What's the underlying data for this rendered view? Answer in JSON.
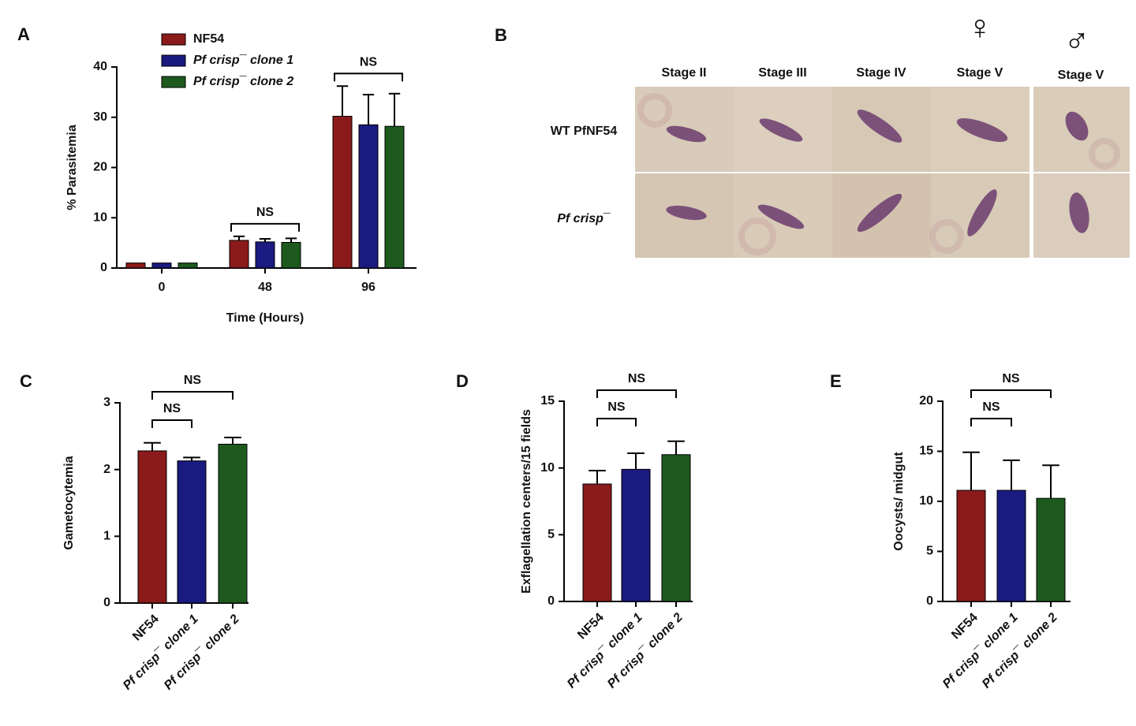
{
  "chart_data": [
    {
      "type": "grouped_bar",
      "panel": "A",
      "xlabel": "Time (Hours)",
      "ylabel": "% Parasitemia",
      "categories": [
        "0",
        "48",
        "96"
      ],
      "series": [
        {
          "name": "NF54",
          "color": "#8b1a1a",
          "values": [
            1,
            5.5,
            30.2
          ],
          "errors": [
            0,
            0.8,
            6
          ]
        },
        {
          "name": "Pf crisp¯ clone 1",
          "color": "#1a1a80",
          "values": [
            1,
            5.2,
            28.5
          ],
          "errors": [
            0,
            0.6,
            6
          ]
        },
        {
          "name": "Pf crisp¯ clone 2",
          "color": "#1e5a1e",
          "values": [
            1,
            5.1,
            28.2
          ],
          "errors": [
            0,
            0.8,
            6.5
          ]
        }
      ],
      "ylim": [
        0,
        40
      ],
      "yticks": [
        0,
        10,
        20,
        30,
        40
      ],
      "annotations": [
        "NS",
        "NS"
      ]
    },
    {
      "type": "bar",
      "panel": "C",
      "ylabel": "Gametocytemia",
      "categories": [
        "NF54",
        "Pf crisp¯ clone 1",
        "Pf crisp¯ clone 2"
      ],
      "values": [
        2.28,
        2.13,
        2.38
      ],
      "errors": [
        0.12,
        0.05,
        0.1
      ],
      "colors": [
        "#8b1a1a",
        "#1a1a80",
        "#1e5a1e"
      ],
      "ylim": [
        0,
        3
      ],
      "yticks": [
        0,
        1,
        2,
        3
      ],
      "annotations": [
        "NS",
        "NS"
      ]
    },
    {
      "type": "bar",
      "panel": "D",
      "ylabel": "Exflagellation centers/15 fields",
      "categories": [
        "NF54",
        "Pf crisp¯ clone 1",
        "Pf crisp¯ clone 2"
      ],
      "values": [
        8.8,
        9.9,
        11.0
      ],
      "errors": [
        1.0,
        1.2,
        1.0
      ],
      "colors": [
        "#8b1a1a",
        "#1a1a80",
        "#1e5a1e"
      ],
      "ylim": [
        0,
        15
      ],
      "yticks": [
        0,
        5,
        10,
        15
      ],
      "annotations": [
        "NS",
        "NS"
      ]
    },
    {
      "type": "bar",
      "panel": "E",
      "ylabel": "Oocysts/ midgut",
      "categories": [
        "NF54",
        "Pf crisp¯ clone 1",
        "Pf crisp¯ clone 2"
      ],
      "values": [
        11.1,
        11.1,
        10.3
      ],
      "errors": [
        3.8,
        3.0,
        3.3
      ],
      "colors": [
        "#8b1a1a",
        "#1a1a80",
        "#1e5a1e"
      ],
      "ylim": [
        0,
        20
      ],
      "yticks": [
        0,
        5,
        10,
        15,
        20
      ],
      "annotations": [
        "NS",
        "NS"
      ]
    }
  ],
  "panel_b": {
    "panel": "B",
    "columns": [
      "Stage II",
      "Stage III",
      "Stage IV",
      "Stage V",
      "Stage V"
    ],
    "symbols": [
      "♀",
      "♂"
    ],
    "rows": [
      "WT PfNF54",
      "Pf crisp¯"
    ]
  }
}
